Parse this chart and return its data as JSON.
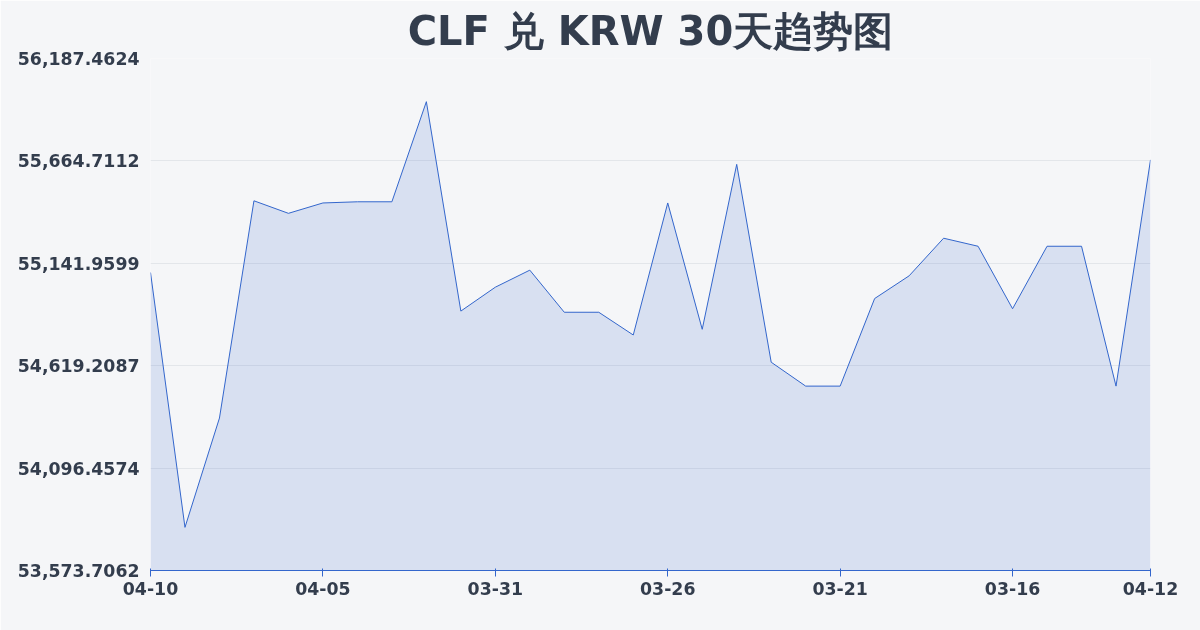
{
  "chart_data": {
    "type": "area",
    "title": "CLF 兑 KRW 30天趋势图",
    "categories": [
      "04-10",
      null,
      null,
      null,
      null,
      "04-05",
      null,
      null,
      null,
      null,
      "03-31",
      null,
      null,
      null,
      null,
      "03-26",
      null,
      null,
      null,
      null,
      "03-21",
      null,
      null,
      null,
      null,
      "03-16",
      null,
      null,
      null,
      "04-12"
    ],
    "series": [
      {
        "color": "#3366cc",
        "values": [
          55095,
          53794,
          54352,
          55461,
          55397,
          55450,
          55456,
          55456,
          55967,
          54898,
          55020,
          55107,
          54892,
          54892,
          54776,
          55450,
          54805,
          55647,
          54637,
          54515,
          54515,
          54962,
          55078,
          55270,
          55229,
          54910,
          55229,
          55229,
          54515,
          55670
        ]
      }
    ],
    "ylim": [
      53573.7062,
      56187.4624
    ],
    "yticks": [
      {
        "value": 53573.7062,
        "label": "53,573.7062"
      },
      {
        "value": 54096.4574,
        "label": "54,096.4574"
      },
      {
        "value": 54619.2087,
        "label": "54,619.2087"
      },
      {
        "value": 55141.9599,
        "label": "55,141.9599"
      },
      {
        "value": 55664.7112,
        "label": "55,664.7112"
      },
      {
        "value": 56187.4624,
        "label": "56,187.4624"
      }
    ],
    "grid": "y"
  }
}
